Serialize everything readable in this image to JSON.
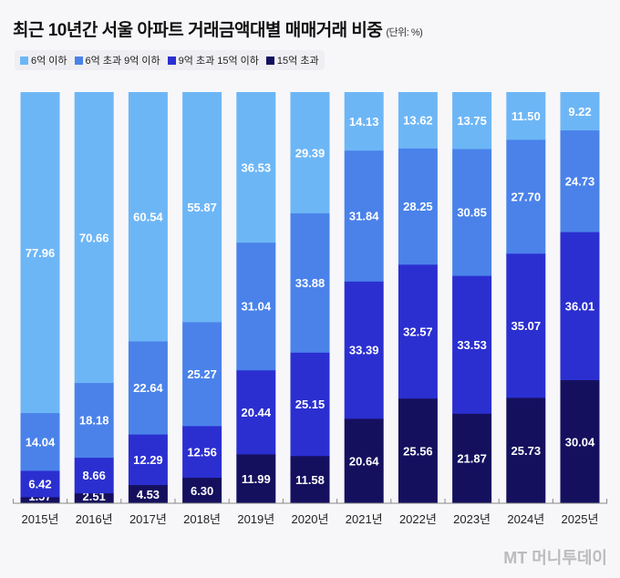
{
  "chart_data": {
    "type": "bar",
    "stacked": true,
    "title": "최근 10년간 서울 아파트 거래금액대별 매매거래 비중",
    "unit": "(단위: %)",
    "categories": [
      "2015년",
      "2016년",
      "2017년",
      "2018년",
      "2019년",
      "2020년",
      "2021년",
      "2022년",
      "2023년",
      "2024년",
      "2025년"
    ],
    "ylim": [
      0,
      100
    ],
    "grid": false,
    "legend_position": "top-left",
    "series": [
      {
        "name": "15억 초과",
        "color": "#15105e",
        "values": [
          1.57,
          2.51,
          4.53,
          6.3,
          11.99,
          11.58,
          20.64,
          25.56,
          21.87,
          25.73,
          30.04
        ]
      },
      {
        "name": "9억 초과 15억 이하",
        "color": "#2b2fd0",
        "values": [
          6.42,
          8.66,
          12.29,
          12.56,
          20.44,
          25.15,
          33.39,
          32.57,
          33.53,
          35.07,
          36.01
        ]
      },
      {
        "name": "6억 초과 9억 이하",
        "color": "#4a82ea",
        "values": [
          14.04,
          18.18,
          22.64,
          25.27,
          31.04,
          33.88,
          31.84,
          28.25,
          30.85,
          27.7,
          24.73
        ]
      },
      {
        "name": "6억 이하",
        "color": "#6db6f6",
        "values": [
          77.96,
          70.66,
          60.54,
          55.87,
          36.53,
          29.39,
          14.13,
          13.62,
          13.75,
          11.5,
          9.22
        ]
      }
    ],
    "legend_order": [
      3,
      2,
      1,
      0
    ]
  },
  "watermark": "MT 머니투데이"
}
